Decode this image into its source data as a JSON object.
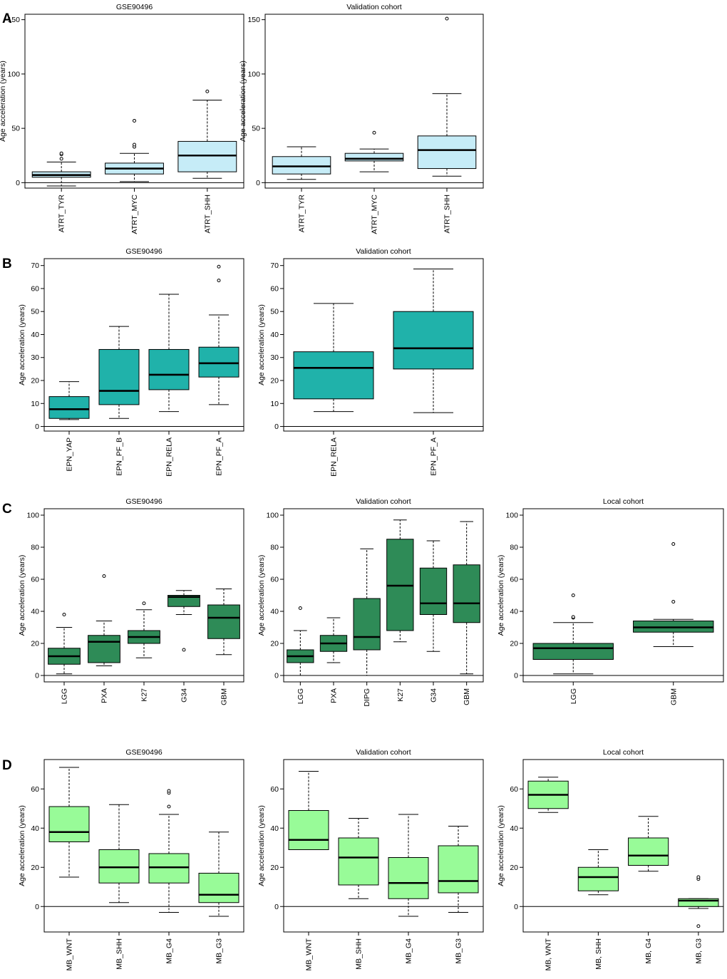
{
  "figure": {
    "panel_labels": [
      "A",
      "B",
      "C",
      "D"
    ]
  },
  "colors": {
    "atrt_box": "#c6ecf7",
    "epn_box": "#20b2aa",
    "glioma_box": "#2e8b57",
    "mb_box": "#98fb98",
    "line": "#000000"
  },
  "chart_data": [
    {
      "id": "A1",
      "panel": "A",
      "type": "boxplot",
      "title": "GSE90496",
      "ylabel": "Age acceleration (years)",
      "ylim": [
        -5,
        155
      ],
      "yticks": [
        0,
        50,
        100,
        150
      ],
      "zero_line": true,
      "color_key": "atrt_box",
      "categories": [
        "ATRT_TYR",
        "ATRT_MYC",
        "ATRT_SHH"
      ],
      "boxes": [
        {
          "min": -3,
          "q1": 5,
          "median": 7,
          "q3": 10,
          "max": 19,
          "outliers": [
            22,
            26,
            27
          ]
        },
        {
          "min": 1,
          "q1": 8,
          "median": 13,
          "q3": 18,
          "max": 27,
          "outliers": [
            33,
            35,
            57
          ]
        },
        {
          "min": 4,
          "q1": 10,
          "median": 25,
          "q3": 38,
          "max": 76,
          "outliers": [
            84
          ]
        }
      ]
    },
    {
      "id": "A2",
      "panel": "A",
      "type": "boxplot",
      "title": "Validation cohort",
      "ylabel": "Age acceleration (years)",
      "ylim": [
        -5,
        155
      ],
      "yticks": [
        0,
        50,
        100,
        150
      ],
      "zero_line": true,
      "color_key": "atrt_box",
      "categories": [
        "ATRT_TYR",
        "ATRT_MYC",
        "ATRT_SHH"
      ],
      "boxes": [
        {
          "min": 3,
          "q1": 8,
          "median": 15,
          "q3": 24,
          "max": 33,
          "outliers": []
        },
        {
          "min": 10,
          "q1": 20,
          "median": 22,
          "q3": 27,
          "max": 31,
          "outliers": [
            46
          ]
        },
        {
          "min": 6,
          "q1": 13,
          "median": 30,
          "q3": 43,
          "max": 82,
          "outliers": [
            151
          ]
        }
      ]
    },
    {
      "id": "B1",
      "panel": "B",
      "type": "boxplot",
      "title": "GSE90496",
      "ylabel": "Age acceleration (years)",
      "ylim": [
        -2,
        73
      ],
      "yticks": [
        0,
        10,
        20,
        30,
        40,
        50,
        60,
        70
      ],
      "zero_line": true,
      "color_key": "epn_box",
      "categories": [
        "EPN_YAP",
        "EPN_PF_B",
        "EPN_RELA",
        "EPN_PF_A"
      ],
      "boxes": [
        {
          "min": 3,
          "q1": 3.5,
          "median": 7.5,
          "q3": 13,
          "max": 19.5,
          "outliers": []
        },
        {
          "min": 3.5,
          "q1": 9.5,
          "median": 15.5,
          "q3": 33.5,
          "max": 43.5,
          "outliers": []
        },
        {
          "min": 6.5,
          "q1": 16,
          "median": 22.5,
          "q3": 33.5,
          "max": 57.5,
          "outliers": []
        },
        {
          "min": 9.5,
          "q1": 21.5,
          "median": 27.5,
          "q3": 34.5,
          "max": 48.5,
          "outliers": [
            63.5,
            69.5
          ]
        }
      ]
    },
    {
      "id": "B2",
      "panel": "B",
      "type": "boxplot",
      "title": "Validation cohort",
      "ylabel": "Age acceleration (years)",
      "ylim": [
        -2,
        73
      ],
      "yticks": [
        0,
        10,
        20,
        30,
        40,
        50,
        60,
        70
      ],
      "zero_line": true,
      "color_key": "epn_box",
      "categories": [
        "EPN_RELA",
        "EPN_PF_A"
      ],
      "boxes": [
        {
          "min": 6.5,
          "q1": 12,
          "median": 25.5,
          "q3": 32.5,
          "max": 53.5,
          "outliers": []
        },
        {
          "min": 6,
          "q1": 25,
          "median": 34,
          "q3": 50,
          "max": 68.5,
          "outliers": []
        }
      ]
    },
    {
      "id": "C1",
      "panel": "C",
      "type": "boxplot",
      "title": "GSE90496",
      "ylabel": "Age acceleration (years)",
      "ylim": [
        -4,
        104
      ],
      "yticks": [
        0,
        20,
        40,
        60,
        80,
        100
      ],
      "zero_line": true,
      "color_key": "glioma_box",
      "categories": [
        "LGG",
        "PXA",
        "K27",
        "G34",
        "GBM"
      ],
      "boxes": [
        {
          "min": 1,
          "q1": 7,
          "median": 12,
          "q3": 17,
          "max": 30,
          "outliers": [
            38
          ]
        },
        {
          "min": 6,
          "q1": 8,
          "median": 21,
          "q3": 25,
          "max": 34,
          "outliers": [
            62
          ]
        },
        {
          "min": 11,
          "q1": 20,
          "median": 24,
          "q3": 28,
          "max": 41,
          "outliers": [
            45
          ]
        },
        {
          "min": 38,
          "q1": 43,
          "median": 49,
          "q3": 50,
          "max": 53,
          "outliers": [
            16
          ]
        },
        {
          "min": 13,
          "q1": 23,
          "median": 36,
          "q3": 44,
          "max": 54,
          "outliers": []
        }
      ]
    },
    {
      "id": "C2",
      "panel": "C",
      "type": "boxplot",
      "title": "Validation cohort",
      "ylabel": "Age acceleration (years)",
      "ylim": [
        -4,
        104
      ],
      "yticks": [
        0,
        20,
        40,
        60,
        80,
        100
      ],
      "zero_line": true,
      "color_key": "glioma_box",
      "categories": [
        "LGG",
        "PXA",
        "DIPG",
        "K27",
        "G34",
        "GBM"
      ],
      "boxes": [
        {
          "min": 0,
          "q1": 8,
          "median": 12,
          "q3": 16,
          "max": 28,
          "outliers": [
            42
          ]
        },
        {
          "min": 8,
          "q1": 15,
          "median": 20,
          "q3": 25,
          "max": 36,
          "outliers": []
        },
        {
          "min": 0,
          "q1": 16,
          "median": 24,
          "q3": 48,
          "max": 79,
          "outliers": []
        },
        {
          "min": 21,
          "q1": 28,
          "median": 56,
          "q3": 85,
          "max": 97,
          "outliers": []
        },
        {
          "min": 15,
          "q1": 38,
          "median": 45,
          "q3": 67,
          "max": 84,
          "outliers": []
        },
        {
          "min": 1,
          "q1": 33,
          "median": 45,
          "q3": 69,
          "max": 96,
          "outliers": []
        }
      ]
    },
    {
      "id": "C3",
      "panel": "C",
      "type": "boxplot",
      "title": "Local cohort",
      "ylabel": "Age acceleration (years)",
      "ylim": [
        -4,
        104
      ],
      "yticks": [
        0,
        20,
        40,
        60,
        80,
        100
      ],
      "zero_line": true,
      "color_key": "glioma_box",
      "categories": [
        "LGG",
        "GBM"
      ],
      "boxes": [
        {
          "min": 1,
          "q1": 10,
          "median": 17,
          "q3": 20,
          "max": 33,
          "outliers": [
            36,
            36.5,
            50
          ]
        },
        {
          "min": 18,
          "q1": 27,
          "median": 30,
          "q3": 34,
          "max": 35,
          "outliers": [
            46,
            82
          ]
        }
      ]
    },
    {
      "id": "D1",
      "panel": "D",
      "type": "boxplot",
      "title": "GSE90496",
      "ylabel": "Age acceleration (years)",
      "ylim": [
        -13,
        75
      ],
      "yticks": [
        0,
        20,
        40,
        60
      ],
      "zero_line": true,
      "color_key": "mb_box",
      "categories": [
        "MB_WNT",
        "MB_SHH",
        "MB_G4",
        "MB_G3"
      ],
      "boxes": [
        {
          "min": 15,
          "q1": 33,
          "median": 38,
          "q3": 51,
          "max": 71,
          "outliers": []
        },
        {
          "min": 2,
          "q1": 12,
          "median": 20,
          "q3": 29,
          "max": 52,
          "outliers": []
        },
        {
          "min": -3,
          "q1": 12,
          "median": 20,
          "q3": 27,
          "max": 47,
          "outliers": [
            51,
            58,
            59
          ]
        },
        {
          "min": -5,
          "q1": 2,
          "median": 6,
          "q3": 17,
          "max": 38,
          "outliers": []
        }
      ]
    },
    {
      "id": "D2",
      "panel": "D",
      "type": "boxplot",
      "title": "Validation cohort",
      "ylabel": "Age acceleration (years)",
      "ylim": [
        -13,
        75
      ],
      "yticks": [
        0,
        20,
        40,
        60
      ],
      "zero_line": true,
      "color_key": "mb_box",
      "categories": [
        "MB_WNT",
        "MB_SHH",
        "MB_G4",
        "MB_G3"
      ],
      "boxes": [
        {
          "min": 29,
          "q1": 29,
          "median": 34,
          "q3": 49,
          "max": 69,
          "outliers": []
        },
        {
          "min": 4,
          "q1": 11,
          "median": 25,
          "q3": 35,
          "max": 45,
          "outliers": []
        },
        {
          "min": -5,
          "q1": 4,
          "median": 12,
          "q3": 25,
          "max": 47,
          "outliers": []
        },
        {
          "min": -3,
          "q1": 7,
          "median": 13,
          "q3": 31,
          "max": 41,
          "outliers": []
        }
      ]
    },
    {
      "id": "D3",
      "panel": "D",
      "type": "boxplot",
      "title": "Local cohort",
      "ylabel": "Age acceleration (years)",
      "ylim": [
        -13,
        75
      ],
      "yticks": [
        0,
        20,
        40,
        60
      ],
      "zero_line": true,
      "color_key": "mb_box",
      "categories": [
        "MB, WNT",
        "MB, SHH",
        "MB, G4",
        "MB, G3"
      ],
      "boxes": [
        {
          "min": 48,
          "q1": 50,
          "median": 57,
          "q3": 64,
          "max": 66,
          "outliers": []
        },
        {
          "min": 6,
          "q1": 8,
          "median": 15,
          "q3": 20,
          "max": 29,
          "outliers": []
        },
        {
          "min": 18,
          "q1": 21,
          "median": 26,
          "q3": 35,
          "max": 46,
          "outliers": []
        },
        {
          "min": -1,
          "q1": 0,
          "median": 3,
          "q3": 4,
          "max": 4,
          "outliers": [
            -10,
            14,
            15
          ]
        }
      ]
    }
  ]
}
